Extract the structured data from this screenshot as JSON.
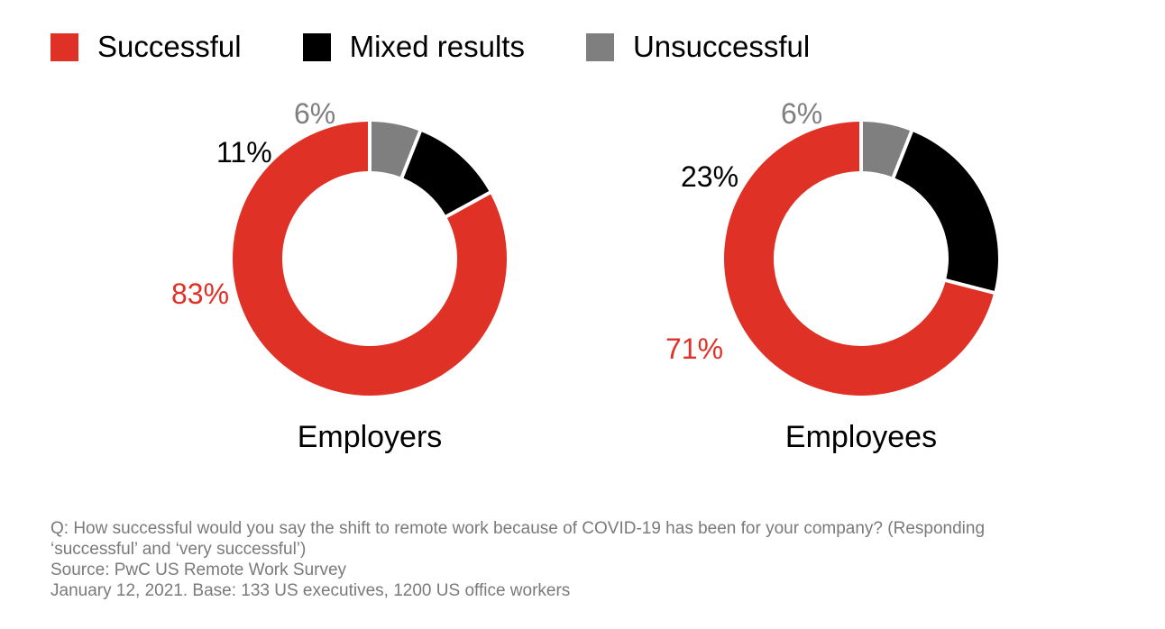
{
  "legend": {
    "items": [
      {
        "label": "Successful",
        "color": "#e03127"
      },
      {
        "label": "Mixed results",
        "color": "#000000"
      },
      {
        "label": "Unsuccessful",
        "color": "#7f7f7f"
      }
    ]
  },
  "chart_data": [
    {
      "type": "pie",
      "variant": "donut",
      "title": "Employers",
      "categories": [
        "Successful",
        "Mixed results",
        "Unsuccessful"
      ],
      "values": [
        83,
        11,
        6
      ],
      "value_labels": [
        "83%",
        "11%",
        "6%"
      ],
      "colors": [
        "#e03127",
        "#000000",
        "#7f7f7f"
      ],
      "legend_position": "top-left"
    },
    {
      "type": "pie",
      "variant": "donut",
      "title": "Employees",
      "categories": [
        "Successful",
        "Mixed results",
        "Unsuccessful"
      ],
      "values": [
        71,
        23,
        6
      ],
      "value_labels": [
        "71%",
        "23%",
        "6%"
      ],
      "colors": [
        "#e03127",
        "#000000",
        "#7f7f7f"
      ],
      "legend_position": "top-left"
    }
  ],
  "footnote": {
    "question_line1": "Q: How successful would you say the shift to remote work because of COVID-19 has been for your company? (Responding",
    "question_line2": "‘successful’ and ‘very successful’)",
    "source": "Source: PwC US Remote Work Survey",
    "base": "January 12, 2021. Base: 133 US executives, 1200 US office workers"
  }
}
